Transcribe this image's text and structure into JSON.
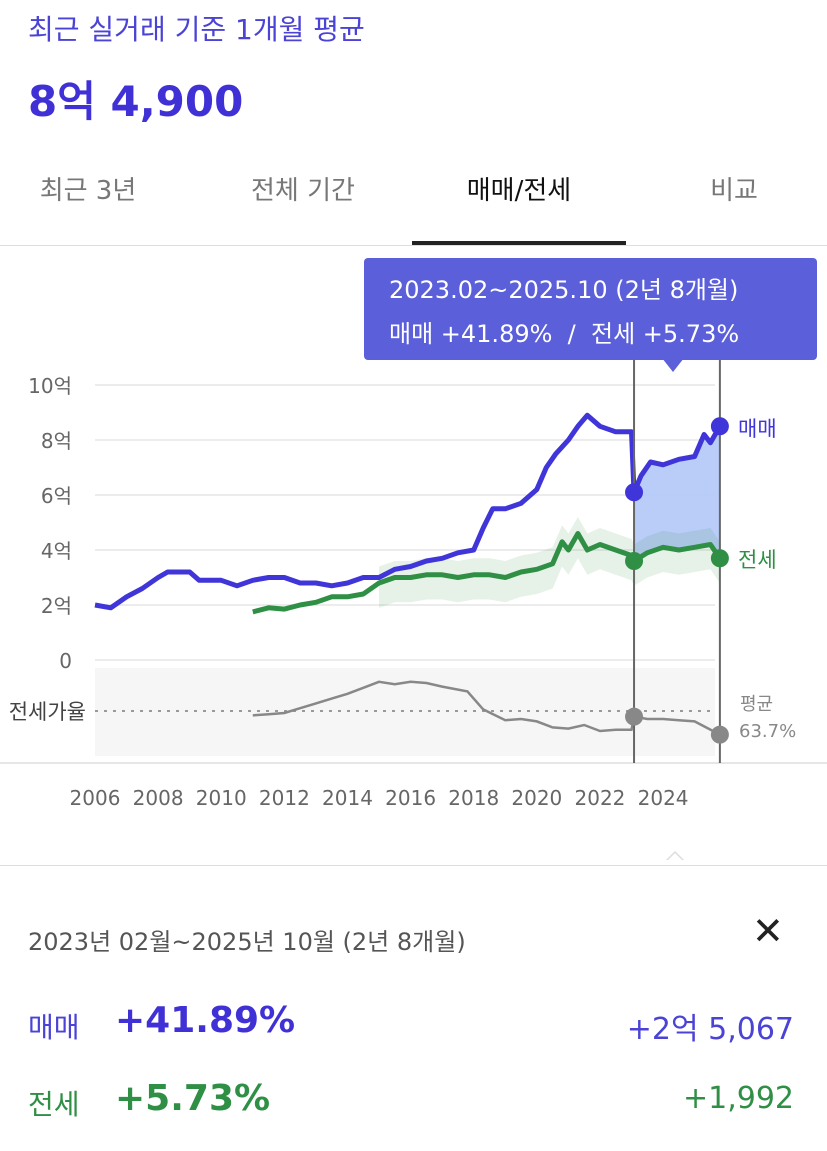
{
  "header": {
    "subtitle": "최근 실거래 기준 1개월 평균",
    "price": "8억 4,900"
  },
  "tabs": [
    {
      "label": "최근 3년"
    },
    {
      "label": "전체 기간"
    },
    {
      "label": "매매/전세",
      "active": true
    },
    {
      "label": "비교"
    }
  ],
  "tooltip": {
    "period": "2023.02~2025.10 (2년 8개월)",
    "summary": "매매 +41.89%  /  전세 +5.73%"
  },
  "colors": {
    "sale": "#3f35d9",
    "jeonse": "#2f8f45",
    "ratio": "#888888",
    "selection": "#b3c8f8",
    "tooltip": "#5b5fd9"
  },
  "chart_data": {
    "type": "line",
    "x_ticks": [
      "2006",
      "2008",
      "2010",
      "2012",
      "2014",
      "2016",
      "2018",
      "2020",
      "2022",
      "2024"
    ],
    "y_ticks": [
      {
        "v": 10,
        "label": "10억"
      },
      {
        "v": 8,
        "label": "8억"
      },
      {
        "v": 6,
        "label": "6억"
      },
      {
        "v": 4,
        "label": "4억"
      },
      {
        "v": 2,
        "label": "2억"
      },
      {
        "v": 0,
        "label": "0"
      }
    ],
    "ylim": [
      0,
      10
    ],
    "selection": [
      2023.08,
      2025.8
    ],
    "series": [
      {
        "name": "매매",
        "unit": "억",
        "points": [
          [
            2006,
            2.0
          ],
          [
            2006.5,
            1.9
          ],
          [
            2007,
            2.3
          ],
          [
            2007.5,
            2.6
          ],
          [
            2008,
            3.0
          ],
          [
            2008.3,
            3.2
          ],
          [
            2009,
            3.2
          ],
          [
            2009.3,
            2.9
          ],
          [
            2010,
            2.9
          ],
          [
            2010.5,
            2.7
          ],
          [
            2011,
            2.9
          ],
          [
            2011.5,
            3.0
          ],
          [
            2012,
            3.0
          ],
          [
            2012.5,
            2.8
          ],
          [
            2013,
            2.8
          ],
          [
            2013.5,
            2.7
          ],
          [
            2014,
            2.8
          ],
          [
            2014.5,
            3.0
          ],
          [
            2015,
            3.0
          ],
          [
            2015.5,
            3.3
          ],
          [
            2016,
            3.4
          ],
          [
            2016.5,
            3.6
          ],
          [
            2017,
            3.7
          ],
          [
            2017.5,
            3.9
          ],
          [
            2018,
            4.0
          ],
          [
            2018.3,
            4.8
          ],
          [
            2018.6,
            5.5
          ],
          [
            2019,
            5.5
          ],
          [
            2019.5,
            5.7
          ],
          [
            2020,
            6.2
          ],
          [
            2020.3,
            7.0
          ],
          [
            2020.6,
            7.5
          ],
          [
            2021,
            8.0
          ],
          [
            2021.3,
            8.5
          ],
          [
            2021.6,
            8.9
          ],
          [
            2022,
            8.5
          ],
          [
            2022.5,
            8.3
          ],
          [
            2023,
            8.3
          ],
          [
            2023.08,
            6.1
          ],
          [
            2023.3,
            6.7
          ],
          [
            2023.6,
            7.2
          ],
          [
            2024,
            7.1
          ],
          [
            2024.5,
            7.3
          ],
          [
            2025,
            7.4
          ],
          [
            2025.3,
            8.2
          ],
          [
            2025.5,
            7.9
          ],
          [
            2025.8,
            8.5
          ]
        ]
      },
      {
        "name": "전세",
        "unit": "억",
        "points": [
          [
            2011,
            1.75
          ],
          [
            2011.5,
            1.9
          ],
          [
            2012,
            1.85
          ],
          [
            2012.5,
            2.0
          ],
          [
            2013,
            2.1
          ],
          [
            2013.5,
            2.3
          ],
          [
            2014,
            2.3
          ],
          [
            2014.5,
            2.4
          ],
          [
            2015,
            2.8
          ],
          [
            2015.5,
            3.0
          ],
          [
            2016,
            3.0
          ],
          [
            2016.5,
            3.1
          ],
          [
            2017,
            3.1
          ],
          [
            2017.5,
            3.0
          ],
          [
            2018,
            3.1
          ],
          [
            2018.5,
            3.1
          ],
          [
            2019,
            3.0
          ],
          [
            2019.5,
            3.2
          ],
          [
            2020,
            3.3
          ],
          [
            2020.5,
            3.5
          ],
          [
            2020.8,
            4.3
          ],
          [
            2021,
            4.0
          ],
          [
            2021.3,
            4.6
          ],
          [
            2021.6,
            4.0
          ],
          [
            2022,
            4.2
          ],
          [
            2022.5,
            4.0
          ],
          [
            2023,
            3.8
          ],
          [
            2023.08,
            3.6
          ],
          [
            2023.5,
            3.9
          ],
          [
            2024,
            4.1
          ],
          [
            2024.5,
            4.0
          ],
          [
            2025,
            4.1
          ],
          [
            2025.5,
            4.2
          ],
          [
            2025.8,
            3.7
          ]
        ]
      }
    ],
    "ratio": {
      "label": "전세가율",
      "avg_label": "평균",
      "avg_value": "63.7%",
      "avg": 63.7,
      "points": [
        [
          2011,
          60
        ],
        [
          2011.5,
          61
        ],
        [
          2012,
          62
        ],
        [
          2012.5,
          66
        ],
        [
          2013,
          70
        ],
        [
          2013.5,
          74
        ],
        [
          2014,
          78
        ],
        [
          2014.5,
          83
        ],
        [
          2015,
          88
        ],
        [
          2015.5,
          86
        ],
        [
          2016,
          88
        ],
        [
          2016.5,
          87
        ],
        [
          2017,
          84
        ],
        [
          2017.8,
          80
        ],
        [
          2018.3,
          65
        ],
        [
          2019,
          56
        ],
        [
          2019.5,
          57
        ],
        [
          2020,
          55
        ],
        [
          2020.5,
          50
        ],
        [
          2021,
          49
        ],
        [
          2021.5,
          52
        ],
        [
          2022,
          47
        ],
        [
          2022.5,
          48
        ],
        [
          2023,
          48
        ],
        [
          2023.08,
          59
        ],
        [
          2023.5,
          57
        ],
        [
          2024,
          57
        ],
        [
          2024.5,
          56
        ],
        [
          2025,
          55
        ],
        [
          2025.8,
          44
        ]
      ]
    }
  },
  "summary": {
    "range": "2023년 02월~2025년 10월 (2년 8개월)",
    "rows": [
      {
        "label": "매매",
        "pct": "+41.89%",
        "amount": "+2억 5,067"
      },
      {
        "label": "전세",
        "pct": "+5.73%",
        "amount": "+1,992"
      }
    ]
  }
}
